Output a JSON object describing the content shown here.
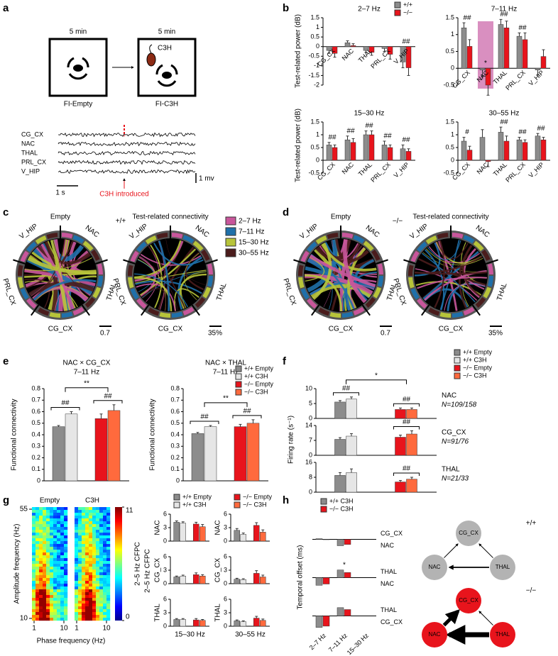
{
  "panel_letters": [
    "a",
    "b",
    "c",
    "d",
    "e",
    "f",
    "g",
    "h"
  ],
  "schematic": {
    "boxes": [
      {
        "time": "5 min",
        "label": "FI-Empty"
      },
      {
        "time": "5 min",
        "label": "FI-C3H",
        "stimulus": "C3H"
      }
    ],
    "traces": [
      "CG_CX",
      "NAC",
      "THAL",
      "PRL_CX",
      "V_HIP"
    ],
    "time_scale": "1 s",
    "voltage_scale": "1 mv",
    "event": "C3H introduced"
  },
  "connectivity": {
    "panels": [
      {
        "genotype": "+/+",
        "empty_title": "Empty",
        "test_title": "Test-related connectivity",
        "empty_scale": "0.7",
        "test_scale": "35%"
      },
      {
        "genotype": "−/−",
        "empty_title": "Empty",
        "test_title": "Test-related connectivity",
        "empty_scale": "0.7",
        "test_scale": "35%"
      }
    ],
    "regions": [
      "V_HIP",
      "NAC",
      "THAL",
      "CG_CX",
      "PRL_CX"
    ],
    "bands": [
      {
        "name": "2–7 Hz",
        "color": "#c8569b"
      },
      {
        "name": "7–11 Hz",
        "color": "#1f70aa"
      },
      {
        "name": "15–30 Hz",
        "color": "#b7c43a"
      },
      {
        "name": "30–55 Hz",
        "color": "#4a1c1c"
      }
    ]
  },
  "heatmap": {
    "titles": [
      "Empty",
      "C3H"
    ],
    "ylabel": "Amplitude frequency (Hz)",
    "xlabel": "Phase frequency (Hz)",
    "yticks": [
      10,
      55
    ],
    "xticks": [
      1,
      10
    ],
    "colorbar": {
      "label": "2–5 Hz CFPC",
      "ticks": [
        0,
        11
      ]
    }
  },
  "cfpc_ylabel": "2–5 Hz CFPC",
  "network": {
    "diagrams": [
      {
        "genotype": "+/+",
        "color": "#b3b3b3",
        "nodes": [
          "CG_CX",
          "NAC",
          "THAL"
        ]
      },
      {
        "genotype": "−/−",
        "color": "#e8141c",
        "nodes": [
          "CG_CX",
          "NAC",
          "THAL"
        ]
      }
    ]
  },
  "chart_data": [
    {
      "type": "bar",
      "title": "2–7 Hz",
      "ylabel": "Test-related power (dB)",
      "categories": [
        "CG_CX",
        "NAC",
        "THAL",
        "PRL_CX",
        "V_HIP"
      ],
      "series": [
        {
          "name": "+/+",
          "color": "#8c8c8c",
          "values": [
            -0.2,
            0.2,
            -0.2,
            -0.1,
            -0.8
          ],
          "errors": [
            0.15,
            0.1,
            0.1,
            0.15,
            0.3
          ]
        },
        {
          "name": "−/−",
          "color": "#e8141c",
          "values": [
            -0.35,
            0.05,
            -0.3,
            -0.4,
            -1.1
          ],
          "errors": [
            0.2,
            0.1,
            0.15,
            0.25,
            0.4
          ]
        }
      ],
      "ylim": [
        -2,
        1.5
      ],
      "yticks": [
        -2,
        -1.5,
        -1,
        -0.5,
        0,
        0.5,
        1,
        1.5
      ],
      "markers": [
        null,
        null,
        null,
        null,
        "##"
      ]
    },
    {
      "type": "bar",
      "title": "7–11 Hz",
      "categories": [
        "CG_CX",
        "NAC",
        "THAL",
        "PRL_CX",
        "V_HIP"
      ],
      "series": [
        {
          "color": "#8c8c8c",
          "values": [
            1.2,
            -0.05,
            1.3,
            0.95,
            -0.05
          ],
          "errors": [
            0.15,
            0.2,
            0.15,
            0.1,
            0.15
          ]
        },
        {
          "color": "#e8141c",
          "values": [
            0.65,
            -0.5,
            1.2,
            0.85,
            0.35
          ],
          "errors": [
            0.2,
            0.3,
            0.2,
            0.2,
            0.2
          ]
        }
      ],
      "ylim": [
        -0.5,
        1.5
      ],
      "yticks": [
        -0.5,
        0,
        0.5,
        1,
        1.5
      ],
      "markers": [
        "##",
        "*",
        "##",
        "##",
        null
      ]
    },
    {
      "type": "bar",
      "title": "15–30 Hz",
      "ylabel": "Test-related power (dB)",
      "categories": [
        "CG_CX",
        "NAC",
        "THAL",
        "PRL_CX",
        "V_HIP"
      ],
      "series": [
        {
          "color": "#8c8c8c",
          "values": [
            0.6,
            0.8,
            1.0,
            0.6,
            0.45
          ],
          "errors": [
            0.1,
            0.15,
            0.15,
            0.15,
            0.15
          ]
        },
        {
          "color": "#e8141c",
          "values": [
            0.5,
            0.7,
            1.0,
            0.5,
            0.35
          ],
          "errors": [
            0.1,
            0.15,
            0.15,
            0.1,
            0.1
          ]
        }
      ],
      "ylim": [
        -0.5,
        1.5
      ],
      "yticks": [
        -0.5,
        0,
        0.5,
        1,
        1.5
      ],
      "markers": [
        "##",
        "##",
        "##",
        "##",
        "##"
      ]
    },
    {
      "type": "bar",
      "title": "30–55 Hz",
      "categories": [
        "CG_CX",
        "NAC",
        "THAL",
        "PRL_CX",
        "V_HIP"
      ],
      "series": [
        {
          "color": "#8c8c8c",
          "values": [
            0.75,
            0.9,
            1.1,
            0.8,
            0.95
          ],
          "errors": [
            0.15,
            0.3,
            0.2,
            0.1,
            0.1
          ]
        },
        {
          "color": "#e8141c",
          "values": [
            0.4,
            -0.05,
            0.75,
            0.7,
            0.8
          ],
          "errors": [
            0.15,
            0.2,
            0.2,
            0.1,
            0.1
          ]
        }
      ],
      "ylim": [
        -0.5,
        1.5
      ],
      "yticks": [
        -0.5,
        0,
        0.5,
        1,
        1.5
      ],
      "markers": [
        "#",
        null,
        "##",
        "##",
        "##"
      ]
    },
    {
      "type": "bar",
      "title": "NAC × CG_CX",
      "subtitle": "7–11 Hz",
      "ylabel": "Functional connectivity",
      "series": [
        {
          "color": "#8c8c8c",
          "values": [
            0.47,
            null
          ],
          "errors": [
            0.01,
            null
          ]
        },
        {
          "color": "#e6e6e6",
          "values": [
            0.58,
            null
          ],
          "errors": [
            0.02,
            null
          ]
        },
        {
          "color": "#e8141c",
          "values": [
            null,
            0.54
          ],
          "errors": [
            null,
            0.04
          ]
        },
        {
          "color": "#ff6a3d",
          "values": [
            null,
            0.61
          ],
          "errors": [
            null,
            0.05
          ]
        }
      ],
      "ylim": [
        0,
        0.8
      ],
      "yticks": [
        0,
        0.1,
        0.2,
        0.3,
        0.4,
        0.5,
        0.6,
        0.7,
        0.8
      ],
      "markers": [
        "##",
        "##"
      ],
      "between": "**"
    },
    {
      "type": "bar",
      "title": "NAC × THAL",
      "subtitle": "7–11 Hz",
      "ylabel": "Functional connectivity",
      "series": [
        {
          "name": "+/+ Empty",
          "color": "#8c8c8c",
          "values": [
            0.41,
            null
          ],
          "errors": [
            0.01,
            null
          ]
        },
        {
          "name": "+/+ C3H",
          "color": "#e6e6e6",
          "values": [
            0.47,
            null
          ],
          "errors": [
            0.01,
            null
          ]
        },
        {
          "name": "−/− Empty",
          "color": "#e8141c",
          "values": [
            null,
            0.47
          ],
          "errors": [
            null,
            0.02
          ]
        },
        {
          "name": "−/− C3H",
          "color": "#ff6a3d",
          "values": [
            null,
            0.5
          ],
          "errors": [
            null,
            0.03
          ]
        }
      ],
      "ylim": [
        0,
        0.8
      ],
      "yticks": [
        0,
        0.1,
        0.2,
        0.3,
        0.4,
        0.5,
        0.6,
        0.7,
        0.8
      ],
      "markers": [
        "##",
        "##"
      ],
      "between": "**"
    },
    {
      "type": "bar",
      "ylabel": "Firing rate (s⁻¹)",
      "row_label": "NAC",
      "n_label": "N=109/158",
      "series": [
        {
          "name": "+/+ Empty",
          "color": "#8c8c8c",
          "values": [
            5.5,
            null
          ],
          "errors": [
            0.5,
            null
          ]
        },
        {
          "name": "+/+ C3H",
          "color": "#e6e6e6",
          "values": [
            6.5,
            null
          ],
          "errors": [
            0.7,
            null
          ]
        },
        {
          "name": "−/− Empty",
          "color": "#e8141c",
          "values": [
            null,
            3
          ],
          "errors": [
            null,
            0.5
          ]
        },
        {
          "name": "−/− C3H",
          "color": "#ff6a3d",
          "values": [
            null,
            3
          ],
          "errors": [
            null,
            0.5
          ]
        }
      ],
      "ylim": [
        0,
        10
      ],
      "yticks": [
        0,
        5,
        10
      ],
      "markers": [
        "##",
        "##"
      ],
      "between": "*"
    },
    {
      "type": "bar",
      "row_label": "CG_CX",
      "n_label": "N=91/76",
      "series": [
        {
          "color": "#8c8c8c",
          "values": [
            7.5,
            null
          ],
          "errors": [
            0.8,
            null
          ]
        },
        {
          "color": "#e6e6e6",
          "values": [
            9,
            null
          ],
          "errors": [
            1.2,
            null
          ]
        },
        {
          "color": "#e8141c",
          "values": [
            null,
            8.5
          ],
          "errors": [
            null,
            1
          ]
        },
        {
          "color": "#ff6a3d",
          "values": [
            null,
            10
          ],
          "errors": [
            null,
            1.5
          ]
        }
      ],
      "ylim": [
        0,
        14
      ],
      "yticks": [
        0,
        7,
        14
      ],
      "markers": [
        null,
        "##"
      ]
    },
    {
      "type": "bar",
      "row_label": "THAL",
      "n_label": "N=21/33",
      "series": [
        {
          "color": "#8c8c8c",
          "values": [
            9,
            null
          ],
          "errors": [
            1.5,
            null
          ]
        },
        {
          "color": "#e6e6e6",
          "values": [
            10.5,
            null
          ],
          "errors": [
            2,
            null
          ]
        },
        {
          "color": "#e8141c",
          "values": [
            null,
            5.5
          ],
          "errors": [
            null,
            0.8
          ]
        },
        {
          "color": "#ff6a3d",
          "values": [
            null,
            7
          ],
          "errors": [
            null,
            1
          ]
        }
      ],
      "ylim": [
        0,
        16
      ],
      "yticks": [
        0,
        8,
        16
      ],
      "markers": [
        null,
        "##"
      ]
    },
    {
      "type": "bar",
      "ylabel": "NAC",
      "series": [
        {
          "name": "+/+ Empty",
          "color": "#8c8c8c",
          "values": [
            4.2,
            null
          ],
          "errors": [
            0.3,
            null
          ]
        },
        {
          "name": "+/+ C3H",
          "color": "#e6e6e6",
          "values": [
            4.0,
            null
          ],
          "errors": [
            0.3,
            null
          ]
        },
        {
          "color": "#e8141c",
          "values": [
            null,
            3.8
          ],
          "errors": [
            null,
            0.4
          ]
        },
        {
          "color": "#ff6a3d",
          "values": [
            null,
            3.2
          ],
          "errors": [
            null,
            0.5
          ]
        }
      ],
      "ylim": [
        0,
        6
      ],
      "yticks": [
        0,
        3,
        6
      ]
    },
    {
      "type": "bar",
      "ylabel": "NAC",
      "series": [
        {
          "color": "#8c8c8c",
          "values": [
            2.4,
            null
          ],
          "errors": [
            0.4,
            null
          ]
        },
        {
          "color": "#e6e6e6",
          "values": [
            1.5,
            null
          ],
          "errors": [
            0.3,
            null
          ]
        },
        {
          "name": "−/− Empty",
          "color": "#e8141c",
          "values": [
            null,
            3.5
          ],
          "errors": [
            null,
            0.6
          ]
        },
        {
          "name": "−/− C3H",
          "color": "#ff6a3d",
          "values": [
            null,
            2.0
          ],
          "errors": [
            null,
            0.5
          ]
        }
      ],
      "ylim": [
        0,
        6
      ],
      "yticks": [
        0,
        3,
        6
      ]
    },
    {
      "type": "bar",
      "ylabel": "CG_CX",
      "series": [
        {
          "color": "#8c8c8c",
          "values": [
            1.5,
            null
          ],
          "errors": [
            0.2,
            null
          ]
        },
        {
          "color": "#e6e6e6",
          "values": [
            1.7,
            null
          ],
          "errors": [
            0.2,
            null
          ]
        },
        {
          "color": "#e8141c",
          "values": [
            null,
            2.0
          ],
          "errors": [
            null,
            0.4
          ]
        },
        {
          "color": "#ff6a3d",
          "values": [
            null,
            1.7
          ],
          "errors": [
            null,
            0.3
          ]
        }
      ],
      "ylim": [
        0,
        6
      ],
      "yticks": [
        0,
        3,
        6
      ]
    },
    {
      "type": "bar",
      "ylabel": "CG_CX",
      "series": [
        {
          "color": "#8c8c8c",
          "values": [
            1.0,
            null
          ],
          "errors": [
            0.2,
            null
          ]
        },
        {
          "color": "#e6e6e6",
          "values": [
            0.9,
            null
          ],
          "errors": [
            0.2,
            null
          ]
        },
        {
          "color": "#e8141c",
          "values": [
            null,
            2.3
          ],
          "errors": [
            null,
            0.6
          ]
        },
        {
          "color": "#ff6a3d",
          "values": [
            null,
            1.5
          ],
          "errors": [
            null,
            0.4
          ]
        }
      ],
      "ylim": [
        0,
        6
      ],
      "yticks": [
        0,
        3,
        6
      ]
    },
    {
      "type": "bar",
      "ylabel": "THAL",
      "xlabel": "15–30 Hz",
      "series": [
        {
          "color": "#8c8c8c",
          "values": [
            1.5,
            null
          ],
          "errors": [
            0.2,
            null
          ]
        },
        {
          "color": "#e6e6e6",
          "values": [
            1.5,
            null
          ],
          "errors": [
            0.2,
            null
          ]
        },
        {
          "color": "#e8141c",
          "values": [
            null,
            1.4
          ],
          "errors": [
            null,
            0.3
          ]
        },
        {
          "color": "#ff6a3d",
          "values": [
            null,
            1.3
          ],
          "errors": [
            null,
            0.2
          ]
        }
      ],
      "ylim": [
        0,
        6
      ],
      "yticks": [
        0,
        3,
        6
      ]
    },
    {
      "type": "bar",
      "ylabel": "THAL",
      "xlabel": "30–55 Hz",
      "series": [
        {
          "color": "#8c8c8c",
          "values": [
            1.2,
            null
          ],
          "errors": [
            0.2,
            null
          ]
        },
        {
          "color": "#e6e6e6",
          "values": [
            1.0,
            null
          ],
          "errors": [
            0.2,
            null
          ]
        },
        {
          "color": "#e8141c",
          "values": [
            null,
            1.8
          ],
          "errors": [
            null,
            0.4
          ]
        },
        {
          "color": "#ff6a3d",
          "values": [
            null,
            1.3
          ],
          "errors": [
            null,
            0.3
          ]
        }
      ],
      "ylim": [
        0,
        6
      ],
      "yticks": [
        0,
        3,
        6
      ]
    },
    {
      "type": "bar",
      "label_top": "CG_CX",
      "label_bottom": "NAC",
      "series": [
        {
          "name": "+/+ C3H",
          "color": "#8c8c8c",
          "values": [
            1,
            -10,
            null
          ]
        },
        {
          "name": "−/− C3H",
          "color": "#e8141c",
          "values": [
            0,
            -8,
            null
          ]
        }
      ],
      "ylim": [
        -25,
        25
      ]
    },
    {
      "type": "bar",
      "ylabel": "Temporal offset (ms)",
      "label_top": "THAL",
      "label_bottom": "NAC",
      "series": [
        {
          "color": "#8c8c8c",
          "values": [
            -12,
            12,
            null
          ]
        },
        {
          "color": "#e8141c",
          "values": [
            -10,
            8,
            null
          ]
        }
      ],
      "ylim": [
        -25,
        25
      ],
      "markers": [
        null,
        "*",
        null
      ]
    },
    {
      "type": "bar",
      "label_top": "THAL",
      "label_bottom": "CG_CX",
      "categories": [
        "2–7 Hz",
        "7–11 Hz",
        "15–30 Hz"
      ],
      "series": [
        {
          "color": "#8c8c8c",
          "values": [
            -18,
            13,
            null
          ]
        },
        {
          "color": "#e8141c",
          "values": [
            -16,
            10,
            null
          ]
        }
      ],
      "ylim": [
        -25,
        25
      ]
    }
  ]
}
